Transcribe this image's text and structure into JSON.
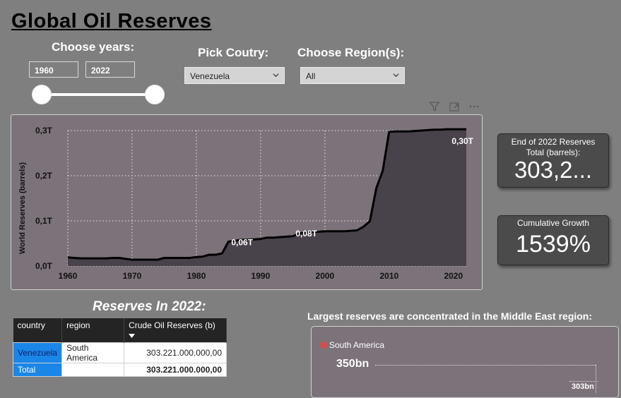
{
  "page_title": "Global Oil Reserves",
  "years_filter": {
    "label": "Choose years:",
    "from": "1960",
    "to": "2022"
  },
  "country_filter": {
    "label": "Pick Coutry:",
    "value": "Venezuela"
  },
  "region_filter": {
    "label": "Choose Region(s):",
    "value": "All"
  },
  "chart_toolbar": {
    "icons": [
      "filter-icon",
      "focus-mode-icon",
      "more-options-icon"
    ]
  },
  "chart_data": {
    "type": "area",
    "title": "",
    "xlabel": "",
    "ylabel": "World Reserves (barrels)",
    "ylim": [
      0,
      0.3
    ],
    "xlim": [
      1960,
      2022
    ],
    "grid": true,
    "y_ticks": [
      "0,0T",
      "0,1T",
      "0,2T",
      "0,3T"
    ],
    "x_ticks": [
      "1960",
      "1970",
      "1980",
      "1990",
      "2000",
      "2010",
      "2020"
    ],
    "unit": "T",
    "x": [
      1960,
      1961,
      1962,
      1963,
      1964,
      1965,
      1966,
      1967,
      1968,
      1969,
      1970,
      1971,
      1972,
      1973,
      1974,
      1975,
      1976,
      1977,
      1978,
      1979,
      1980,
      1981,
      1982,
      1983,
      1984,
      1985,
      1986,
      1987,
      1988,
      1989,
      1990,
      1991,
      1992,
      1993,
      1994,
      1995,
      1996,
      1997,
      1998,
      1999,
      2000,
      2001,
      2002,
      2003,
      2004,
      2005,
      2006,
      2007,
      2008,
      2009,
      2010,
      2011,
      2012,
      2013,
      2014,
      2015,
      2016,
      2017,
      2018,
      2019,
      2020,
      2021,
      2022
    ],
    "values": [
      0.019,
      0.018,
      0.017,
      0.017,
      0.017,
      0.017,
      0.017,
      0.018,
      0.018,
      0.016,
      0.014,
      0.014,
      0.014,
      0.014,
      0.014,
      0.018,
      0.018,
      0.018,
      0.018,
      0.018,
      0.02,
      0.021,
      0.025,
      0.025,
      0.028,
      0.054,
      0.056,
      0.058,
      0.058,
      0.059,
      0.06,
      0.063,
      0.063,
      0.064,
      0.065,
      0.066,
      0.072,
      0.074,
      0.076,
      0.076,
      0.077,
      0.077,
      0.077,
      0.077,
      0.078,
      0.079,
      0.087,
      0.099,
      0.172,
      0.211,
      0.297,
      0.298,
      0.298,
      0.298,
      0.299,
      0.3,
      0.301,
      0.302,
      0.302,
      0.303,
      0.303,
      0.303,
      0.303
    ],
    "annotations": [
      {
        "x": 1988,
        "y": 0.06,
        "label": "0,06T"
      },
      {
        "x": 1998,
        "y": 0.08,
        "label": "0,08T"
      },
      {
        "x": 2022,
        "y": 0.3,
        "label": "0,30T"
      }
    ],
    "colors": {
      "area": "#48424a",
      "line": "#000000",
      "panel": "#7b7379"
    }
  },
  "cards": {
    "reserves": {
      "label": "End of 2022 Reserves Total (barrels):",
      "value": "303,2..."
    },
    "growth": {
      "label": "Cumulative Growth",
      "value": "1539%"
    }
  },
  "table": {
    "title": "Reserves In 2022:",
    "headers": [
      "country",
      "region",
      "Crude Oil Reserves (b)"
    ],
    "rows": [
      [
        "Venezuela",
        "South America",
        "303.221.000.000,00"
      ]
    ],
    "total": [
      "Total",
      "",
      "303.221.000.000,00"
    ]
  },
  "map_panel": {
    "title": "Largest reserves are concentrated in the Middle East region:",
    "legend_item": "South America",
    "legend_color": "#d84b4b",
    "value_label": "350bn",
    "partial_label": "303bn"
  }
}
